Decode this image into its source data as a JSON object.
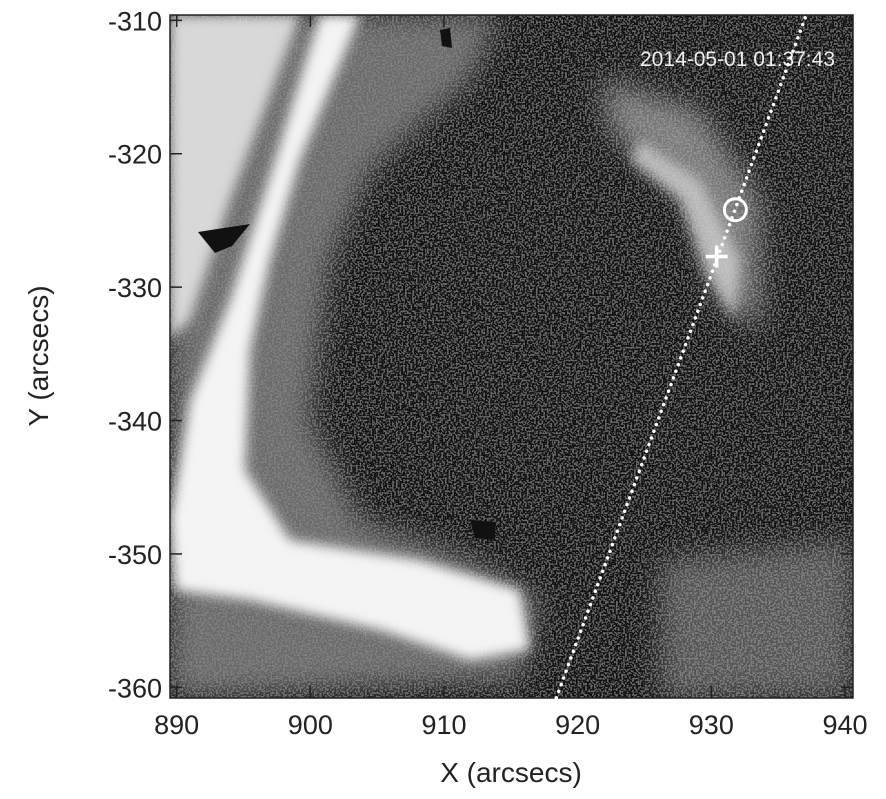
{
  "chart_data": {
    "type": "image",
    "annotation": "2014-05-01 01:37:43",
    "x_label": "X (arcsecs)",
    "y_label": "Y (arcsecs)",
    "xlim": [
      889.5,
      940.6
    ],
    "ylim": [
      -360.8,
      -309.6
    ],
    "xticks": [
      890,
      900,
      910,
      920,
      930,
      940
    ],
    "yticks": [
      -310,
      -320,
      -330,
      -340,
      -350,
      -360
    ],
    "circle_marker": {
      "x": 931.8,
      "y": -324.2
    },
    "plus_marker": {
      "x": 930.4,
      "y": -327.7
    },
    "slit": {
      "x": [
        918.4,
        937.1
      ],
      "y": [
        -360.8,
        -309.6
      ]
    }
  }
}
